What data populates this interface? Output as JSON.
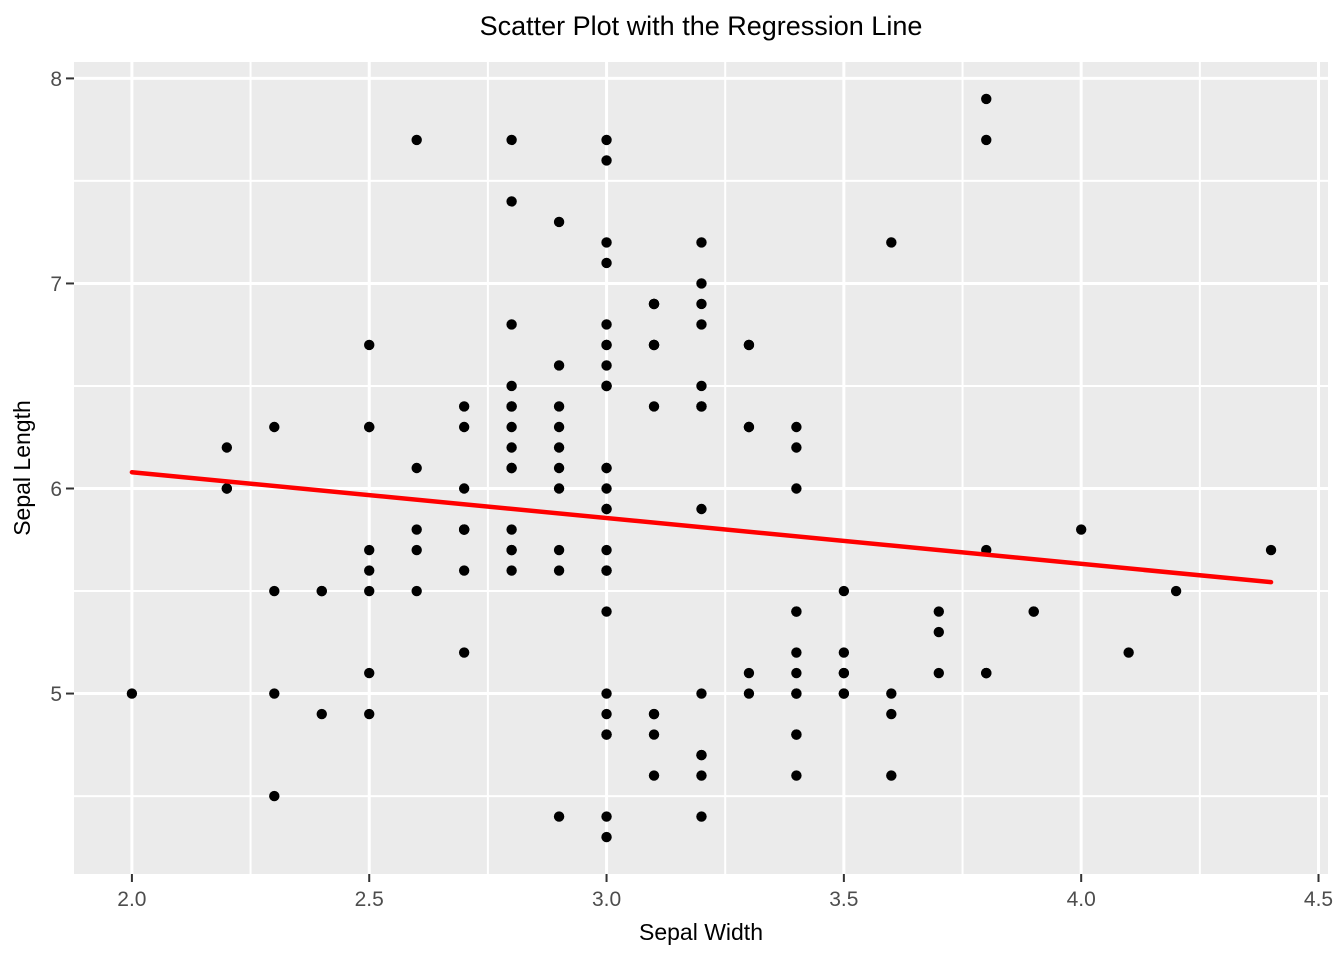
{
  "chart_data": {
    "type": "scatter",
    "title": "Scatter Plot with the Regression Line",
    "xlabel": "Sepal Width",
    "ylabel": "Sepal Length",
    "xlim": [
      1.878,
      4.52
    ],
    "ylim": [
      4.12,
      8.08
    ],
    "grid": true,
    "legend": "none",
    "x_major_ticks": [
      2.0,
      2.5,
      3.0,
      3.5,
      4.0,
      4.5
    ],
    "x_tick_labels": [
      "2.0",
      "2.5",
      "3.0",
      "3.5",
      "4.0",
      "4.5"
    ],
    "x_minor_ticks": [
      2.25,
      2.75,
      3.25,
      3.75,
      4.25
    ],
    "y_major_ticks": [
      5,
      6,
      7,
      8
    ],
    "y_tick_labels": [
      "5",
      "6",
      "7",
      "8"
    ],
    "y_minor_ticks": [
      4.5,
      5.5,
      6.5,
      7.5
    ],
    "points": [
      [
        3.5,
        5.1
      ],
      [
        3.0,
        4.9
      ],
      [
        3.2,
        4.7
      ],
      [
        3.1,
        4.6
      ],
      [
        3.6,
        5.0
      ],
      [
        3.9,
        5.4
      ],
      [
        3.4,
        4.6
      ],
      [
        3.4,
        5.0
      ],
      [
        2.9,
        4.4
      ],
      [
        3.1,
        4.9
      ],
      [
        3.7,
        5.4
      ],
      [
        3.4,
        4.8
      ],
      [
        3.0,
        4.8
      ],
      [
        3.0,
        4.3
      ],
      [
        4.0,
        5.8
      ],
      [
        4.4,
        5.7
      ],
      [
        3.9,
        5.4
      ],
      [
        3.5,
        5.1
      ],
      [
        3.8,
        5.7
      ],
      [
        3.8,
        5.1
      ],
      [
        3.4,
        5.4
      ],
      [
        3.7,
        5.1
      ],
      [
        3.6,
        4.6
      ],
      [
        3.3,
        5.1
      ],
      [
        3.4,
        4.8
      ],
      [
        3.0,
        5.0
      ],
      [
        3.4,
        5.0
      ],
      [
        3.5,
        5.2
      ],
      [
        3.4,
        5.2
      ],
      [
        3.2,
        4.7
      ],
      [
        3.1,
        4.8
      ],
      [
        3.4,
        5.4
      ],
      [
        4.1,
        5.2
      ],
      [
        4.2,
        5.5
      ],
      [
        3.1,
        4.9
      ],
      [
        3.2,
        5.0
      ],
      [
        3.5,
        5.5
      ],
      [
        3.6,
        4.9
      ],
      [
        3.0,
        4.4
      ],
      [
        3.4,
        5.1
      ],
      [
        3.5,
        5.0
      ],
      [
        2.3,
        4.5
      ],
      [
        3.2,
        4.4
      ],
      [
        3.5,
        5.0
      ],
      [
        3.8,
        5.1
      ],
      [
        3.0,
        4.8
      ],
      [
        3.8,
        5.1
      ],
      [
        3.2,
        4.6
      ],
      [
        3.7,
        5.3
      ],
      [
        3.3,
        5.0
      ],
      [
        3.2,
        7.0
      ],
      [
        3.2,
        6.4
      ],
      [
        3.1,
        6.9
      ],
      [
        2.3,
        5.5
      ],
      [
        2.8,
        6.5
      ],
      [
        2.8,
        5.7
      ],
      [
        3.3,
        6.3
      ],
      [
        2.4,
        4.9
      ],
      [
        2.9,
        6.6
      ],
      [
        2.7,
        5.2
      ],
      [
        2.0,
        5.0
      ],
      [
        3.0,
        5.9
      ],
      [
        2.2,
        6.0
      ],
      [
        2.9,
        6.1
      ],
      [
        2.9,
        5.6
      ],
      [
        3.1,
        6.7
      ],
      [
        3.0,
        5.6
      ],
      [
        2.7,
        5.8
      ],
      [
        2.2,
        6.2
      ],
      [
        2.5,
        5.6
      ],
      [
        3.2,
        5.9
      ],
      [
        2.8,
        6.1
      ],
      [
        2.5,
        6.3
      ],
      [
        2.8,
        6.1
      ],
      [
        2.9,
        6.4
      ],
      [
        3.0,
        6.6
      ],
      [
        2.8,
        6.8
      ],
      [
        3.0,
        6.7
      ],
      [
        2.9,
        6.0
      ],
      [
        2.6,
        5.7
      ],
      [
        2.4,
        5.5
      ],
      [
        2.4,
        5.5
      ],
      [
        2.7,
        5.8
      ],
      [
        2.7,
        6.0
      ],
      [
        3.0,
        5.4
      ],
      [
        3.4,
        6.0
      ],
      [
        3.1,
        6.7
      ],
      [
        2.3,
        6.3
      ],
      [
        3.0,
        5.6
      ],
      [
        2.5,
        5.5
      ],
      [
        2.6,
        5.5
      ],
      [
        3.0,
        6.1
      ],
      [
        2.6,
        5.8
      ],
      [
        2.3,
        5.0
      ],
      [
        2.7,
        5.6
      ],
      [
        3.0,
        5.7
      ],
      [
        2.9,
        5.7
      ],
      [
        2.9,
        6.2
      ],
      [
        2.5,
        5.1
      ],
      [
        2.8,
        5.7
      ],
      [
        3.3,
        6.3
      ],
      [
        2.7,
        5.8
      ],
      [
        3.0,
        7.1
      ],
      [
        2.9,
        6.3
      ],
      [
        3.0,
        6.5
      ],
      [
        3.0,
        7.6
      ],
      [
        2.5,
        4.9
      ],
      [
        2.9,
        7.3
      ],
      [
        2.5,
        6.7
      ],
      [
        3.6,
        7.2
      ],
      [
        3.2,
        6.5
      ],
      [
        2.7,
        6.4
      ],
      [
        3.0,
        6.8
      ],
      [
        2.5,
        5.7
      ],
      [
        2.8,
        5.8
      ],
      [
        3.2,
        6.4
      ],
      [
        3.0,
        6.5
      ],
      [
        3.8,
        7.7
      ],
      [
        2.6,
        7.7
      ],
      [
        2.2,
        6.0
      ],
      [
        3.2,
        6.9
      ],
      [
        2.8,
        5.6
      ],
      [
        2.8,
        7.7
      ],
      [
        2.7,
        6.3
      ],
      [
        3.3,
        6.7
      ],
      [
        3.2,
        7.2
      ],
      [
        2.8,
        6.2
      ],
      [
        3.0,
        6.1
      ],
      [
        2.8,
        6.4
      ],
      [
        3.0,
        7.2
      ],
      [
        2.8,
        7.4
      ],
      [
        3.8,
        7.9
      ],
      [
        2.8,
        6.4
      ],
      [
        2.8,
        6.3
      ],
      [
        2.6,
        6.1
      ],
      [
        3.0,
        7.7
      ],
      [
        3.4,
        6.3
      ],
      [
        3.1,
        6.4
      ],
      [
        3.0,
        6.0
      ],
      [
        3.1,
        6.9
      ],
      [
        3.1,
        6.7
      ],
      [
        3.1,
        6.9
      ],
      [
        2.7,
        5.8
      ],
      [
        3.2,
        6.8
      ],
      [
        3.3,
        6.7
      ],
      [
        3.0,
        6.7
      ],
      [
        2.5,
        6.3
      ],
      [
        3.0,
        6.5
      ],
      [
        3.4,
        6.2
      ],
      [
        3.0,
        5.9
      ]
    ],
    "regression_line": {
      "intercept": 6.5262,
      "slope": -0.2234,
      "x_start": 2.0,
      "x_end": 4.4,
      "color": "#FF0000"
    },
    "colors": {
      "background": "#FFFFFF",
      "panel_bg": "#EBEBEB",
      "grid": "#FFFFFF",
      "point": "#000000",
      "axis_text": "#4D4D4D",
      "tick_mark": "#333333",
      "title_text": "#000000"
    }
  }
}
